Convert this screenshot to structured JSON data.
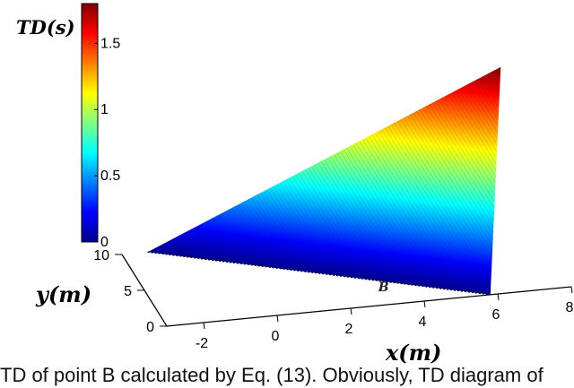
{
  "chart_data": {
    "type": "surface",
    "colormap": "jet",
    "z_title": "TD(s)",
    "xlabel": "x(m)",
    "ylabel": "y(m)",
    "x_ticks": [
      "-2",
      "0",
      "2",
      "4",
      "6",
      "8"
    ],
    "y_ticks": [
      "0",
      "5",
      "10"
    ],
    "colorbar_ticks": [
      "0",
      "0.5",
      "1",
      "1.5"
    ],
    "xlim": [
      -3,
      8
    ],
    "ylim": [
      0,
      10
    ],
    "clim": [
      0,
      1.8
    ],
    "grid": false,
    "surface": {
      "corners": [
        {
          "x": -2.3,
          "y": 10,
          "z": 0
        },
        {
          "x": 5.8,
          "y": 0,
          "z": 0
        },
        {
          "x": 7.3,
          "y": 10,
          "z": 1.8
        }
      ]
    },
    "annotations": [
      {
        "text": "B",
        "x": 5.8,
        "y": 0
      }
    ]
  },
  "caption": "TD of point B calculated by Eq. (13). Obviously, TD diagram of"
}
